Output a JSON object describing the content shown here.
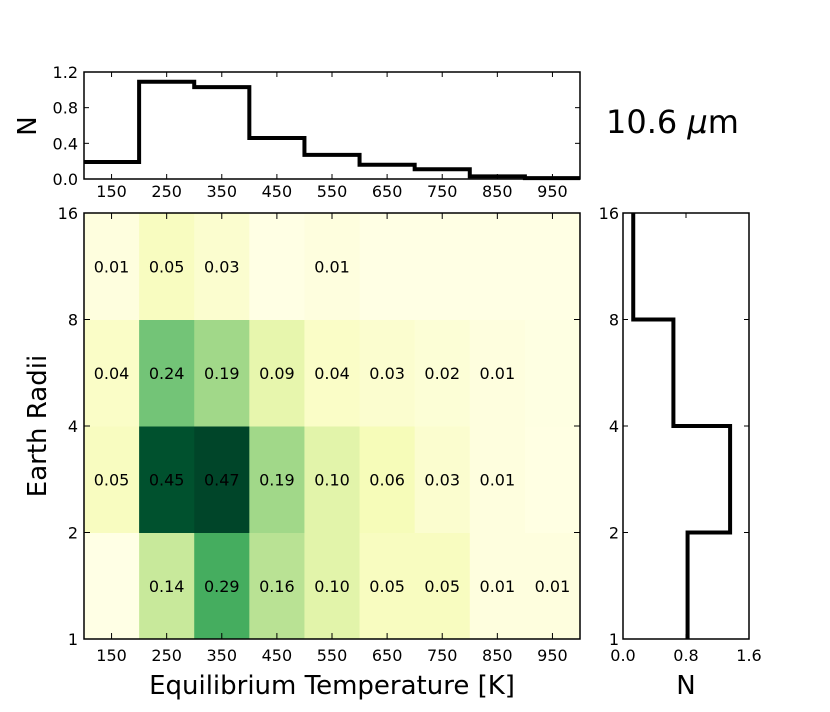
{
  "chart_data": [
    {
      "type": "heatmap",
      "panel": "main",
      "xlabel": "Equilibrium Temperature [K]",
      "ylabel": "Earth Radii",
      "x_bin_edges": [
        100,
        200,
        300,
        400,
        500,
        600,
        700,
        800,
        900,
        1000
      ],
      "x_tick_labels": [
        "150",
        "250",
        "350",
        "450",
        "550",
        "650",
        "750",
        "850",
        "950"
      ],
      "y_bin_edges": [
        1,
        2,
        4,
        8,
        16
      ],
      "y_tick_labels": [
        "1",
        "2",
        "4",
        "8",
        "16"
      ],
      "y_scale": "log2",
      "colormap": [
        "#ffffe5",
        "#f7fcb9",
        "#d9f0a3",
        "#addd8e",
        "#78c679",
        "#41ab5d",
        "#238443",
        "#006837",
        "#004529"
      ],
      "color_max": 0.47,
      "rows_bottom_to_top": [
        {
          "radius_bin": "1-2",
          "values": [
            0.0,
            0.14,
            0.29,
            0.16,
            0.1,
            0.05,
            0.05,
            0.01,
            0.01
          ]
        },
        {
          "radius_bin": "2-4",
          "values": [
            0.05,
            0.45,
            0.47,
            0.19,
            0.1,
            0.06,
            0.03,
            0.01,
            0.003
          ]
        },
        {
          "radius_bin": "4-8",
          "values": [
            0.04,
            0.24,
            0.19,
            0.09,
            0.04,
            0.03,
            0.02,
            0.01,
            0.004
          ]
        },
        {
          "radius_bin": "8-16",
          "values": [
            0.01,
            0.05,
            0.03,
            0.001,
            0.01,
            0.001,
            0.002,
            0.001,
            0.001
          ]
        }
      ],
      "cell_labels_bottom_to_top": [
        [
          "",
          "0.14",
          "0.29",
          "0.16",
          "0.10",
          "0.05",
          "0.05",
          "0.01",
          "0.01"
        ],
        [
          "0.05",
          "0.45",
          "0.47",
          "0.19",
          "0.10",
          "0.06",
          "0.03",
          "0.01",
          ""
        ],
        [
          "0.04",
          "0.24",
          "0.19",
          "0.09",
          "0.04",
          "0.03",
          "0.02",
          "0.01",
          ""
        ],
        [
          "0.01",
          "0.05",
          "0.03",
          "",
          "0.01",
          "",
          "",
          "",
          ""
        ]
      ]
    },
    {
      "type": "line",
      "panel": "top-histogram",
      "step": true,
      "ylabel": "N",
      "x_bin_edges": [
        100,
        200,
        300,
        400,
        500,
        600,
        700,
        800,
        900,
        1000
      ],
      "values": [
        0.19,
        1.09,
        1.03,
        0.46,
        0.27,
        0.16,
        0.11,
        0.03,
        0.01
      ],
      "ylim": [
        0,
        1.2
      ],
      "y_tick_labels": [
        "0.0",
        "0.4",
        "0.8",
        "1.2"
      ],
      "x_tick_labels": [
        "150",
        "250",
        "350",
        "450",
        "550",
        "650",
        "750",
        "850",
        "950"
      ]
    },
    {
      "type": "line",
      "panel": "right-histogram",
      "step": true,
      "orientation": "horizontal",
      "xlabel": "N",
      "y_bin_edges": [
        1,
        2,
        4,
        8,
        16
      ],
      "values": [
        0.82,
        1.36,
        0.64,
        0.13
      ],
      "xlim": [
        0,
        1.6
      ],
      "x_tick_labels": [
        "0.0",
        "0.8",
        "1.6"
      ],
      "y_tick_labels": [
        "1",
        "2",
        "4",
        "8",
        "16"
      ]
    }
  ],
  "annotation": {
    "prefix": "10.6 ",
    "mu": "μ",
    "unit": "m"
  }
}
